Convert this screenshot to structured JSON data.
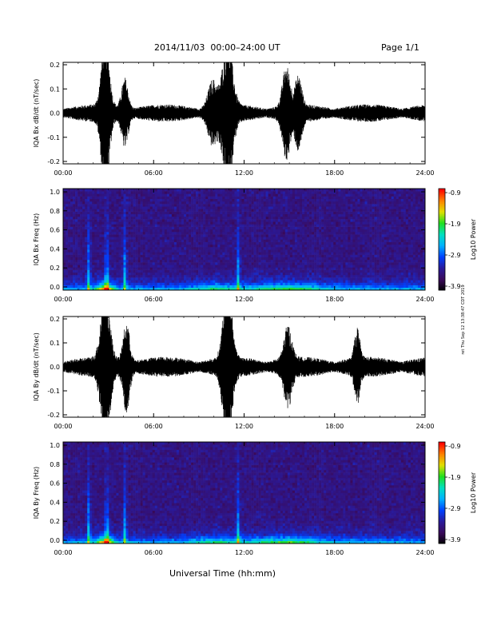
{
  "header": {
    "title": "2014/11/03  00:00–24:00 UT",
    "page": "Page 1/1"
  },
  "footer": {
    "xlabel": "Universal Time (hh:mm)"
  },
  "side_note": "ret Thu Sep 12 13:38:47 CDT 2019",
  "colors": {
    "trace": "#000000",
    "colormap": [
      "#000000",
      "#3a0a5a",
      "#2a1a9a",
      "#0040ff",
      "#00b0ff",
      "#00e0c0",
      "#20e020",
      "#e0e000",
      "#ff8000",
      "#ff0000"
    ]
  },
  "chart_data": [
    {
      "id": "bx-waveform",
      "type": "line",
      "ylabel": "IQA Bx dB/dt (nT/sec)",
      "xlim": [
        "00:00",
        "24:00"
      ],
      "ylim": [
        -0.2,
        0.2
      ],
      "x_ticks": [
        "00:00",
        "06:00",
        "12:00",
        "18:00",
        "24:00"
      ],
      "y_ticks": [
        "-0.2",
        "-0.1",
        "0.0",
        "0.1",
        "0.2"
      ],
      "bursts": [
        {
          "t": 2.8,
          "amp": 0.22,
          "width": 0.35
        },
        {
          "t": 4.1,
          "amp": 0.09,
          "width": 0.3
        },
        {
          "t": 10.9,
          "amp": 0.2,
          "width": 0.45
        },
        {
          "t": 9.9,
          "amp": 0.08,
          "width": 0.4
        },
        {
          "t": 14.8,
          "amp": 0.12,
          "width": 0.35
        },
        {
          "t": 15.6,
          "amp": 0.09,
          "width": 0.3
        }
      ],
      "background_amp": 0.03
    },
    {
      "id": "bx-spectrogram",
      "type": "heatmap",
      "ylabel": "IQA Bx Freq (Hz)",
      "xlim": [
        "00:00",
        "24:00"
      ],
      "ylim": [
        0.0,
        1.0
      ],
      "x_ticks": [
        "00:00",
        "06:00",
        "12:00",
        "18:00",
        "24:00"
      ],
      "y_ticks": [
        "0.0",
        "0.2",
        "0.4",
        "0.6",
        "0.8",
        "1.0"
      ],
      "colorbar": {
        "label": "Log10 Power",
        "range": [
          -3.9,
          -0.9
        ],
        "ticks": [
          "-0.9",
          "-1.9",
          "-2.9",
          "-3.9"
        ]
      },
      "vertical_lines_hours": [
        1.7,
        2.9,
        4.1,
        11.6
      ]
    },
    {
      "id": "by-waveform",
      "type": "line",
      "ylabel": "IQA By dB/dt (nT/sec)",
      "xlim": [
        "00:00",
        "24:00"
      ],
      "ylim": [
        -0.2,
        0.2
      ],
      "x_ticks": [
        "00:00",
        "06:00",
        "12:00",
        "18:00",
        "24:00"
      ],
      "y_ticks": [
        "-0.2",
        "-0.1",
        "0.0",
        "0.1",
        "0.2"
      ],
      "bursts": [
        {
          "t": 2.8,
          "amp": 0.22,
          "width": 0.4
        },
        {
          "t": 4.2,
          "amp": 0.12,
          "width": 0.3
        },
        {
          "t": 10.9,
          "amp": 0.22,
          "width": 0.4
        },
        {
          "t": 14.9,
          "amp": 0.1,
          "width": 0.35
        },
        {
          "t": 19.5,
          "amp": 0.09,
          "width": 0.25
        }
      ],
      "background_amp": 0.035
    },
    {
      "id": "by-spectrogram",
      "type": "heatmap",
      "ylabel": "IQA By Freq (Hz)",
      "xlim": [
        "00:00",
        "24:00"
      ],
      "ylim": [
        0.0,
        1.0
      ],
      "x_ticks": [
        "00:00",
        "06:00",
        "12:00",
        "18:00",
        "24:00"
      ],
      "y_ticks": [
        "0.0",
        "0.2",
        "0.4",
        "0.6",
        "0.8",
        "1.0"
      ],
      "colorbar": {
        "label": "Log10 Power",
        "range": [
          -3.9,
          -0.9
        ],
        "ticks": [
          "-0.9",
          "-1.9",
          "-2.9",
          "-3.9"
        ]
      },
      "vertical_lines_hours": [
        1.7,
        2.9,
        4.1,
        11.6
      ]
    }
  ]
}
